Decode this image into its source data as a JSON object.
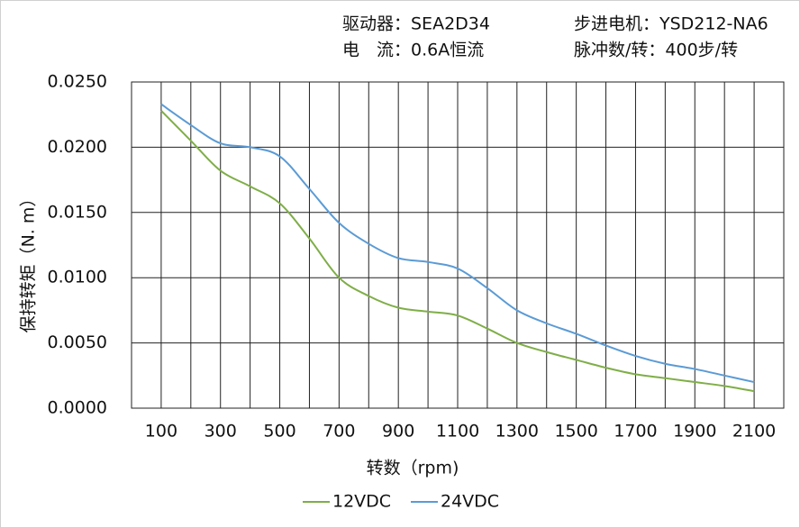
{
  "chart_data": {
    "type": "line",
    "annotations": [
      "驱动器：SEA2D34",
      "步进电机：YSD212-NA6",
      "电　流：0.6A恒流",
      "脉冲数/转：400步/转"
    ],
    "x_label": "转数（rpm)",
    "y_label": "保持转矩（N. m）",
    "x": [
      100,
      200,
      300,
      400,
      500,
      600,
      700,
      800,
      900,
      1000,
      1100,
      1200,
      1300,
      1400,
      1500,
      1600,
      1700,
      1800,
      1900,
      2000,
      2100
    ],
    "series": [
      {
        "name": "12VDC",
        "color": "#7fae48",
        "values": [
          0.0228,
          0.0205,
          0.0182,
          0.017,
          0.0157,
          0.013,
          0.01,
          0.0086,
          0.0077,
          0.0074,
          0.0071,
          0.0061,
          0.005,
          0.0043,
          0.0037,
          0.0031,
          0.0026,
          0.0023,
          0.002,
          0.0017,
          0.0013
        ]
      },
      {
        "name": "24VDC",
        "color": "#5b9bd5",
        "values": [
          0.0233,
          0.0217,
          0.0203,
          0.02,
          0.0193,
          0.0168,
          0.0142,
          0.0126,
          0.0115,
          0.0112,
          0.0107,
          0.0092,
          0.0075,
          0.0065,
          0.0057,
          0.0048,
          0.004,
          0.0034,
          0.003,
          0.0025,
          0.002
        ]
      }
    ],
    "xlim": [
      0,
      2200
    ],
    "xticks": [
      100,
      300,
      500,
      700,
      900,
      1100,
      1300,
      1500,
      1700,
      1900,
      2100
    ],
    "xminor": [
      200,
      400,
      600,
      800,
      1000,
      1200,
      1400,
      1600,
      1800,
      2000
    ],
    "ylim": [
      0,
      0.025
    ],
    "yticks": [
      {
        "value": 0,
        "label": "0.0000"
      },
      {
        "value": 0.005,
        "label": "0.0050"
      },
      {
        "value": 0.01,
        "label": "0.0100"
      },
      {
        "value": 0.015,
        "label": "0.0150"
      },
      {
        "value": 0.02,
        "label": "0.0200"
      },
      {
        "value": 0.025,
        "label": "0.0250"
      }
    ],
    "grid": true,
    "legend": "bottom"
  }
}
